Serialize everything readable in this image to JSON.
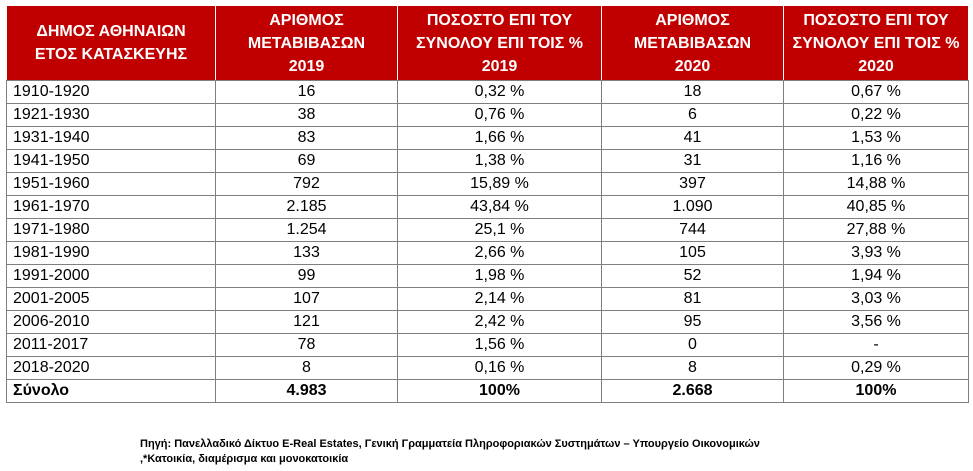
{
  "table": {
    "headers": [
      [
        "ΔΗΜΟΣ ΑΘΗΝΑΙΩΝ",
        "ΕΤΟΣ ΚΑΤΑΣΚΕΥΗΣ"
      ],
      [
        "ΑΡΙΘΜΟΣ",
        "ΜΕΤΑΒΙΒΑΣΩΝ",
        "2019"
      ],
      [
        "ΠΟΣΟΣΤΟ ΕΠΙ ΤΟΥ",
        "ΣΥΝΟΛΟΥ ΕΠΙ ΤΟΙΣ %",
        "2019"
      ],
      [
        "ΑΡΙΘΜΟΣ",
        "ΜΕΤΑΒΙΒΑΣΩΝ",
        "2020"
      ],
      [
        "ΠΟΣΟΣΤΟ ΕΠΙ ΤΟΥ",
        "ΣΥΝΟΛΟΥ ΕΠΙ ΤΟΙΣ %",
        "2020"
      ]
    ],
    "rows": [
      [
        "1910-1920",
        "16",
        "0,32 %",
        "18",
        "0,67 %"
      ],
      [
        "1921-1930",
        "38",
        "0,76 %",
        "6",
        "0,22 %"
      ],
      [
        "1931-1940",
        "83",
        "1,66 %",
        "41",
        "1,53 %"
      ],
      [
        "1941-1950",
        "69",
        "1,38 %",
        "31",
        "1,16 %"
      ],
      [
        "1951-1960",
        "792",
        "15,89 %",
        "397",
        "14,88 %"
      ],
      [
        "1961-1970",
        "2.185",
        "43,84 %",
        "1.090",
        "40,85 %"
      ],
      [
        "1971-1980",
        "1.254",
        "25,1 %",
        "744",
        "27,88 %"
      ],
      [
        "1981-1990",
        "133",
        "2,66 %",
        "105",
        "3,93 %"
      ],
      [
        "1991-2000",
        "99",
        "1,98 %",
        "52",
        "1,94 %"
      ],
      [
        "2001-2005",
        "107",
        "2,14 %",
        "81",
        "3,03 %"
      ],
      [
        "2006-2010",
        "121",
        "2,42 %",
        "95",
        "3,56 %"
      ],
      [
        "2011-2017",
        "78",
        "1,56 %",
        "0",
        "-"
      ],
      [
        "2018-2020",
        "8",
        "0,16 %",
        "8",
        "0,29 %"
      ]
    ],
    "total": [
      "Σύνολο",
      "4.983",
      "100%",
      "2.668",
      "100%"
    ]
  },
  "footnote": {
    "source": "Πηγή: Πανελλαδικό Δίκτυο E-Real Estates, Γενική Γραμματεία Πληροφοριακών Συστημάτων – Υπουργείο Οικονομικών",
    "note": ",*Κατοικία, διαμέρισμα και μονοκατοικία"
  },
  "colors": {
    "header_bg": "#c00000",
    "header_text": "#ffffff",
    "grid": "#7f7f7f"
  }
}
